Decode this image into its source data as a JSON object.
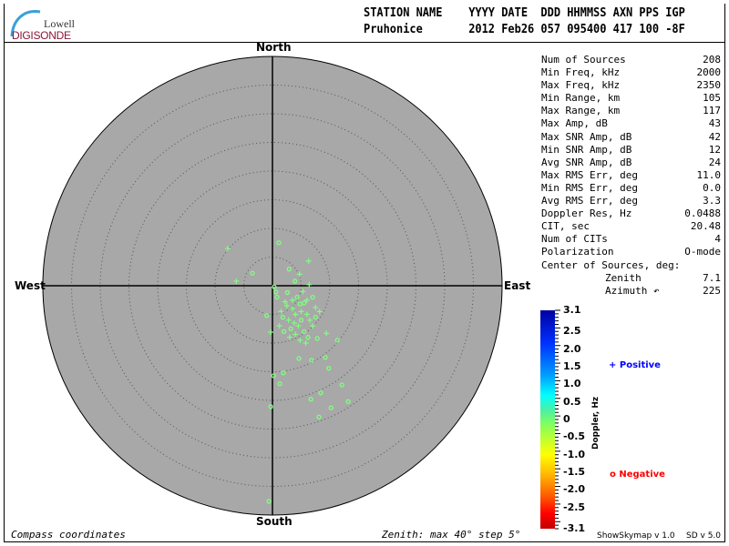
{
  "logo": {
    "line1": "Lowell",
    "line2": "DIGISONDE"
  },
  "header": {
    "labels": "STATION NAME    YYYY DATE  DDD HHMMSS AXN PPS IGP",
    "values": "Pruhonice       2012 Feb26 057 095400 417 100 -8F"
  },
  "compass": {
    "north": "North",
    "south": "South",
    "east": "East",
    "west": "West"
  },
  "stats": [
    {
      "k": "Num of Sources",
      "v": "208"
    },
    {
      "k": "Min Freq, kHz",
      "v": "2000"
    },
    {
      "k": "Max Freq, kHz",
      "v": "2350"
    },
    {
      "k": "Min Range, km",
      "v": "105"
    },
    {
      "k": "Max Range, km",
      "v": "117"
    },
    {
      "k": "Max Amp, dB",
      "v": "43"
    },
    {
      "k": "Max SNR Amp, dB",
      "v": "42"
    },
    {
      "k": "Min SNR Amp, dB",
      "v": "12"
    },
    {
      "k": "Avg SNR Amp, dB",
      "v": "24"
    },
    {
      "k": "Max RMS Err, deg",
      "v": "11.0"
    },
    {
      "k": "Min RMS Err, deg",
      "v": "0.0"
    },
    {
      "k": "Avg RMS Err, deg",
      "v": "3.3"
    },
    {
      "k": "Doppler Res, Hz",
      "v": "0.0488"
    },
    {
      "k": "CIT, sec",
      "v": "20.48"
    },
    {
      "k": "Num of CITs",
      "v": "4"
    },
    {
      "k": "Polarization",
      "v": "O-mode"
    },
    {
      "k": "Center of Sources, deg:",
      "v": ""
    },
    {
      "k": "Zenith",
      "v": "7.1"
    },
    {
      "k": "Azimuth ↶",
      "v": "225"
    }
  ],
  "footer": {
    "left": "Compass coordinates",
    "right": "Zenith: max 40°  step 5°",
    "version1": "ShowSkymap v 1.0",
    "version2": "SD v 5.0"
  },
  "colorbar": {
    "label": "Doppler, Hz",
    "ticks": [
      "3.1",
      "2.5",
      "2.0",
      "1.5",
      "1.0",
      "0.5",
      "0",
      "-0.5",
      "-1.0",
      "-1.5",
      "-2.0",
      "-2.5",
      "-3.1"
    ],
    "range": [
      -3.1,
      3.1
    ]
  },
  "legend": {
    "positive": "Positive",
    "negative": "Negative",
    "positive_symbol": "+",
    "negative_symbol": "o",
    "positive_color": "#0000ff",
    "negative_color": "#ff0000"
  },
  "chart_data": {
    "type": "scatter",
    "coordinates": "compass (east, north components of zenith angle, deg)",
    "zenith_max": 40,
    "zenith_step": 5,
    "point_color": "#80ff80",
    "points": [
      [
        -7.8,
        6.5,
        "+"
      ],
      [
        1.1,
        7.5,
        "o"
      ],
      [
        -3.5,
        2.2,
        "o"
      ],
      [
        -6.3,
        0.8,
        "+"
      ],
      [
        6.3,
        4.3,
        "+"
      ],
      [
        2.9,
        2.9,
        "o"
      ],
      [
        -0.3,
        -8.1,
        "+"
      ],
      [
        -1.0,
        -5.2,
        "o"
      ],
      [
        11.3,
        -9.5,
        "o"
      ],
      [
        9.2,
        -12.5,
        "o"
      ],
      [
        6.8,
        -13.0,
        "o"
      ],
      [
        4.6,
        -12.7,
        "o"
      ],
      [
        0.2,
        -15.7,
        "o"
      ],
      [
        1.9,
        -15.2,
        "o"
      ],
      [
        1.3,
        -17.1,
        "o"
      ],
      [
        9.8,
        -14.4,
        "o"
      ],
      [
        12.1,
        -17.3,
        "o"
      ],
      [
        13.2,
        -20.2,
        "o"
      ],
      [
        10.2,
        -21.3,
        "o"
      ],
      [
        8.4,
        -18.7,
        "o"
      ],
      [
        6.7,
        -19.8,
        "o"
      ],
      [
        8.1,
        -22.9,
        "o"
      ],
      [
        -0.3,
        -21.1,
        "o"
      ],
      [
        -0.6,
        -37.6,
        "o"
      ],
      [
        9.4,
        -8.3,
        "+"
      ],
      [
        0.3,
        -0.2,
        "o"
      ],
      [
        0.6,
        -1.1,
        "o"
      ],
      [
        0.8,
        -2.0,
        "o"
      ],
      [
        4.3,
        -2.0,
        "o"
      ],
      [
        5.5,
        -3.0,
        "o"
      ],
      [
        7.0,
        -2.0,
        "o"
      ],
      [
        1.5,
        -4.5,
        "+"
      ],
      [
        2.5,
        -3.5,
        "+"
      ],
      [
        3.5,
        -4.0,
        "+"
      ],
      [
        4.0,
        -5.0,
        "+"
      ],
      [
        5.0,
        -4.5,
        "+"
      ],
      [
        6.0,
        -5.0,
        "+"
      ],
      [
        2.8,
        -6.0,
        "+"
      ],
      [
        3.8,
        -6.5,
        "+"
      ],
      [
        5.0,
        -6.0,
        "o"
      ],
      [
        4.5,
        -7.0,
        "+"
      ],
      [
        3.2,
        -7.5,
        "o"
      ],
      [
        6.5,
        -6.0,
        "+"
      ],
      [
        7.5,
        -5.5,
        "o"
      ],
      [
        2.0,
        -8.0,
        "o"
      ],
      [
        4.0,
        -8.5,
        "+"
      ],
      [
        5.5,
        -8.0,
        "o"
      ],
      [
        7.0,
        -7.0,
        "+"
      ],
      [
        3.0,
        -9.0,
        "+"
      ],
      [
        4.8,
        -9.5,
        "+"
      ],
      [
        6.2,
        -9.0,
        "o"
      ],
      [
        1.8,
        -5.5,
        "o"
      ],
      [
        5.3,
        -1.0,
        "+"
      ],
      [
        6.4,
        0.2,
        "+"
      ],
      [
        3.9,
        0.8,
        "o"
      ],
      [
        4.7,
        2.0,
        "+"
      ],
      [
        2.6,
        -1.2,
        "o"
      ],
      [
        7.5,
        -3.8,
        "+"
      ],
      [
        8.2,
        -4.5,
        "+"
      ],
      [
        1.2,
        -7.0,
        "+"
      ],
      [
        5.8,
        -10.0,
        "+"
      ],
      [
        7.8,
        -9.2,
        "o"
      ],
      [
        3.5,
        -2.5,
        "+"
      ],
      [
        4.8,
        -3.2,
        "o"
      ],
      [
        6.0,
        -2.5,
        "+"
      ],
      [
        2.2,
        -2.8,
        "+"
      ]
    ]
  }
}
